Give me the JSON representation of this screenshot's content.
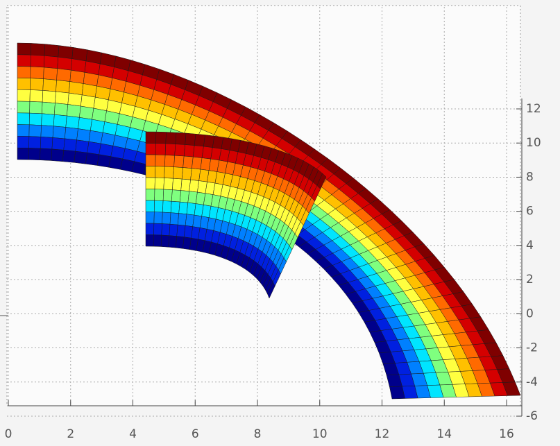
{
  "chart_data": {
    "type": "surface3d",
    "xlim": [
      0,
      16
    ],
    "xticks": [
      0,
      2,
      4,
      6,
      8,
      10,
      12,
      14,
      16
    ],
    "ylim": [
      -6,
      12
    ],
    "yticks": [
      -6,
      -4,
      -2,
      0,
      2,
      4,
      6,
      8,
      10,
      12
    ],
    "grid": true,
    "colormap": [
      "#7f0000",
      "#d40000",
      "#ff6a00",
      "#ffc000",
      "#ffff40",
      "#7fff7f",
      "#00e5ff",
      "#0080ff",
      "#0020e0",
      "#00008b"
    ]
  }
}
